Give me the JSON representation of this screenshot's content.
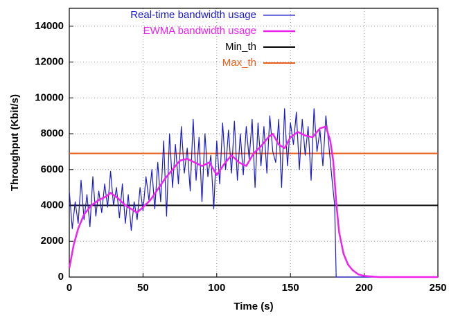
{
  "chart_data": {
    "type": "line",
    "xlabel": "Time (s)",
    "ylabel": "Throughput (Kbit/s)",
    "xlim": [
      0,
      250
    ],
    "xticks": [
      0,
      50,
      100,
      150,
      200,
      250
    ],
    "ylim": [
      0,
      15000
    ],
    "yticks": [
      0,
      2000,
      4000,
      6000,
      8000,
      10000,
      12000,
      14000
    ],
    "grid": true,
    "legend": "top",
    "series": [
      {
        "name": "Real-time bandwidth usage",
        "color": "#1a1acc",
        "width": 1.2,
        "x": [
          0,
          2,
          4,
          6,
          8,
          10,
          12,
          14,
          16,
          18,
          20,
          22,
          24,
          26,
          28,
          30,
          32,
          34,
          36,
          38,
          40,
          42,
          44,
          46,
          48,
          50,
          52,
          54,
          56,
          58,
          60,
          62,
          64,
          66,
          68,
          70,
          72,
          74,
          76,
          78,
          80,
          82,
          84,
          86,
          88,
          90,
          92,
          94,
          96,
          98,
          100,
          102,
          104,
          106,
          108,
          110,
          112,
          114,
          116,
          118,
          120,
          122,
          124,
          126,
          128,
          130,
          132,
          134,
          136,
          138,
          140,
          142,
          144,
          146,
          148,
          150,
          152,
          154,
          156,
          158,
          160,
          162,
          164,
          166,
          168,
          170,
          172,
          174,
          176,
          178,
          180,
          181,
          250
        ],
        "values": [
          4800,
          2700,
          4200,
          3000,
          5400,
          3200,
          4600,
          2800,
          5600,
          3400,
          4800,
          3600,
          5200,
          3900,
          5900,
          4000,
          5000,
          3300,
          5200,
          3000,
          4600,
          2600,
          4200,
          3200,
          5000,
          3700,
          5600,
          4300,
          6000,
          3800,
          6400,
          4200,
          7600,
          3400,
          8000,
          5000,
          7400,
          5200,
          8400,
          5800,
          7200,
          4800,
          8800,
          5400,
          7800,
          4200,
          8000,
          5600,
          6800,
          3800,
          7600,
          5200,
          8600,
          6000,
          8200,
          5800,
          8700,
          5400,
          8000,
          5700,
          8400,
          6600,
          8800,
          5000,
          8600,
          6200,
          8400,
          5800,
          9000,
          7000,
          6400,
          8800,
          5000,
          9400,
          6200,
          8600,
          7400,
          9200,
          6000,
          8800,
          6800,
          8400,
          5400,
          9400,
          7000,
          8200,
          6200,
          9000,
          7400,
          5600,
          4000,
          0,
          0
        ]
      },
      {
        "name": "EWMA bandwidth usage",
        "color": "#ee22ee",
        "width": 2.5,
        "x": [
          0,
          3,
          6,
          10,
          15,
          20,
          25,
          28,
          33,
          38,
          42,
          46,
          50,
          55,
          60,
          65,
          70,
          75,
          80,
          85,
          90,
          95,
          100,
          105,
          110,
          115,
          120,
          125,
          130,
          135,
          138,
          142,
          146,
          150,
          155,
          160,
          165,
          170,
          174,
          177,
          179,
          181,
          183,
          186,
          189,
          192,
          196,
          200,
          210,
          250
        ],
        "values": [
          500,
          1800,
          2700,
          3500,
          4000,
          4300,
          4500,
          4700,
          4400,
          4000,
          3800,
          3600,
          3900,
          4300,
          4900,
          5500,
          6000,
          6500,
          6600,
          6400,
          6200,
          6400,
          5700,
          6300,
          6800,
          6400,
          6200,
          6900,
          7300,
          7800,
          8000,
          7400,
          7200,
          7800,
          8100,
          7900,
          7800,
          8300,
          8400,
          7600,
          6500,
          4200,
          2500,
          1300,
          700,
          400,
          150,
          60,
          0,
          0
        ]
      },
      {
        "name": "Min_th",
        "color": "#000000",
        "width": 2,
        "x": [
          0,
          250
        ],
        "values": [
          4000,
          4000
        ]
      },
      {
        "name": "Max_th",
        "color": "#e8601c",
        "width": 2,
        "x": [
          0,
          250
        ],
        "values": [
          6900,
          6900
        ]
      }
    ]
  }
}
